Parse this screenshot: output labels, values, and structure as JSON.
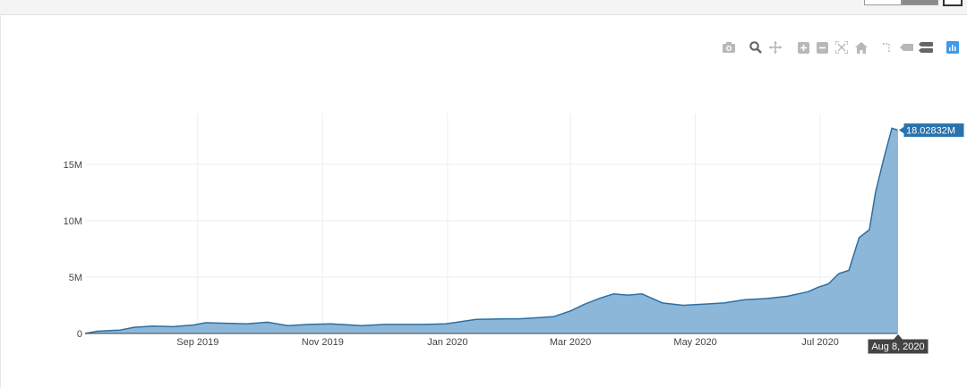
{
  "chart_data": {
    "type": "area",
    "title": "",
    "xlabel": "",
    "ylabel": "",
    "x_tick_labels": [
      "Sep 2019",
      "Nov 2019",
      "Jan 2020",
      "Mar 2020",
      "May 2020",
      "Jul 2020"
    ],
    "y_tick_labels": [
      "0",
      "5M",
      "10M",
      "15M"
    ],
    "y_ticks": [
      0,
      5000000,
      10000000,
      15000000
    ],
    "xlim": [
      "2019-07-08",
      "2020-08-08"
    ],
    "ylim": [
      0,
      19500000
    ],
    "grid": true,
    "colors": {
      "line": "#2d6fa3",
      "fill": "#8cb7d9"
    },
    "hover": {
      "y_label": "18.02832M",
      "x_label": "Aug 8, 2020"
    },
    "series": [
      {
        "x": [
          "2019-07-08",
          "2019-07-14",
          "2019-07-25",
          "2019-08-01",
          "2019-08-10",
          "2019-08-20",
          "2019-08-30",
          "2019-09-05",
          "2019-09-15",
          "2019-09-25",
          "2019-10-05",
          "2019-10-15",
          "2019-10-25",
          "2019-11-05",
          "2019-11-20",
          "2019-12-01",
          "2019-12-20",
          "2019-12-31",
          "2020-01-15",
          "2020-01-30",
          "2020-02-05",
          "2020-02-15",
          "2020-02-22",
          "2020-03-01",
          "2020-03-08",
          "2020-03-15",
          "2020-03-22",
          "2020-03-29",
          "2020-04-05",
          "2020-04-15",
          "2020-04-25",
          "2020-05-05",
          "2020-05-15",
          "2020-05-25",
          "2020-06-05",
          "2020-06-15",
          "2020-06-25",
          "2020-06-30",
          "2020-07-05",
          "2020-07-10",
          "2020-07-15",
          "2020-07-20",
          "2020-07-25",
          "2020-07-28",
          "2020-08-01",
          "2020-08-05",
          "2020-08-08"
        ],
        "y": [
          0,
          200000,
          300000,
          550000,
          650000,
          600000,
          750000,
          950000,
          900000,
          850000,
          1000000,
          700000,
          800000,
          850000,
          700000,
          800000,
          800000,
          850000,
          1250000,
          1300000,
          1300000,
          1400000,
          1500000,
          2000000,
          2600000,
          3100000,
          3500000,
          3400000,
          3500000,
          2700000,
          2500000,
          2600000,
          2700000,
          3000000,
          3100000,
          3300000,
          3700000,
          4100000,
          4400000,
          5300000,
          5600000,
          8500000,
          9200000,
          12500000,
          15500000,
          18200000,
          18028320
        ]
      }
    ]
  },
  "modebar": {
    "icons": [
      "camera-icon",
      "zoom-icon",
      "pan-icon",
      "zoom-in-icon",
      "zoom-out-icon",
      "autoscale-icon",
      "home-icon",
      "spike-lines-icon",
      "hover-closest-icon",
      "hover-compare-icon",
      "plotly-logo-icon"
    ]
  }
}
